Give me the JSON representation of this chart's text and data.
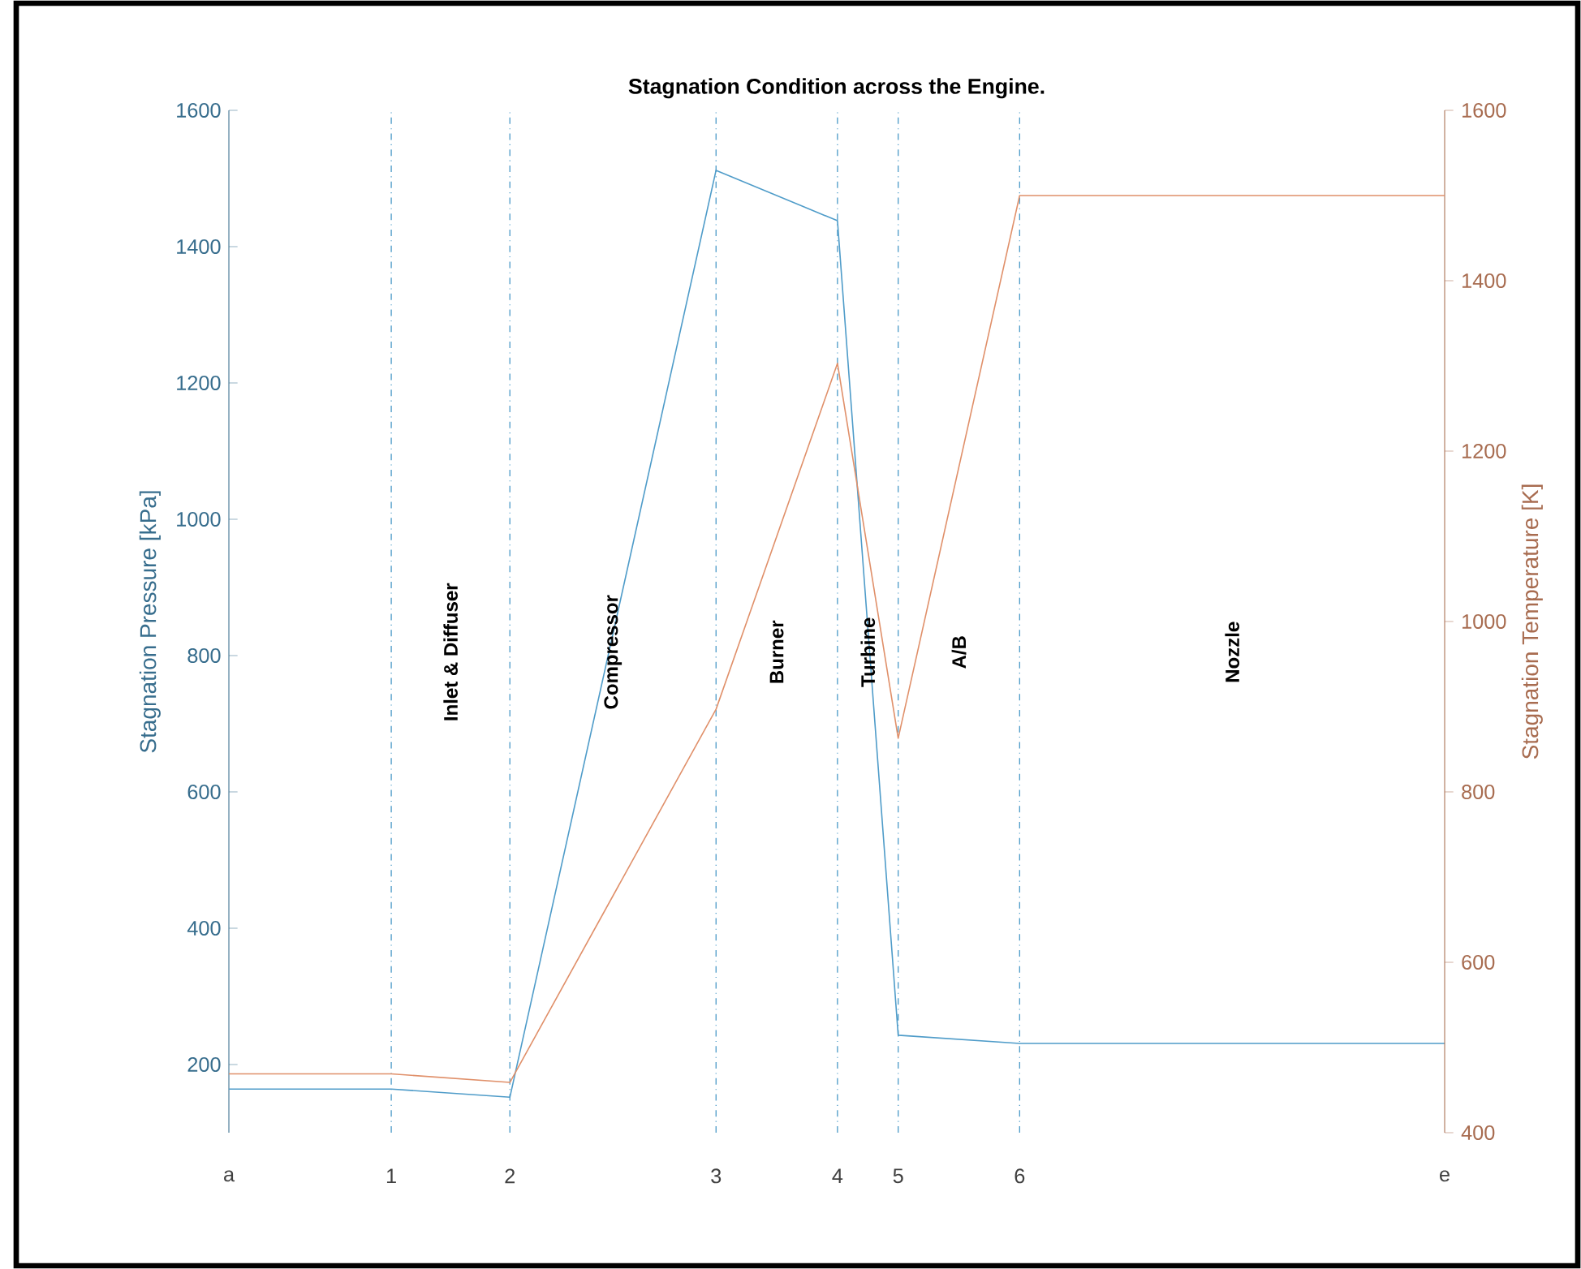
{
  "chart_data": {
    "type": "line",
    "title": "Stagnation Condition across the Engine.",
    "x": [
      0,
      1.15,
      1.99,
      3.45,
      4.31,
      4.74,
      5.6,
      8.61
    ],
    "xlim": [
      0,
      8.61
    ],
    "xticks": [
      {
        "value": 0,
        "label": "a"
      },
      {
        "value": 1.15,
        "label": "1"
      },
      {
        "value": 1.99,
        "label": "2"
      },
      {
        "value": 3.45,
        "label": "3"
      },
      {
        "value": 4.31,
        "label": "4"
      },
      {
        "value": 4.74,
        "label": "5"
      },
      {
        "value": 5.6,
        "label": "6"
      },
      {
        "value": 8.61,
        "label": "e"
      }
    ],
    "ylabel": "Stagnation Pressure [kPa]",
    "y2label": "Stagnation Temperature [K]",
    "ylim": [
      100,
      1600
    ],
    "yticks": [
      200,
      400,
      600,
      800,
      1000,
      1200,
      1400,
      1600
    ],
    "y2lim": [
      400,
      1600
    ],
    "y2ticks": [
      400,
      600,
      800,
      1000,
      1200,
      1400,
      1600
    ],
    "series": [
      {
        "color": "#4f9cc9",
        "values": [
          164,
          164,
          152,
          1512,
          1438,
          243,
          231,
          231
        ]
      },
      {
        "color": "#e0906a",
        "axis": "y2",
        "values": [
          469,
          469,
          459,
          897,
          1303,
          863,
          1500,
          1500
        ]
      }
    ],
    "ref_lines": [
      {
        "axis": "x",
        "value": 1.15,
        "color": "#4f9cc9",
        "line_style": "dashdot"
      },
      {
        "axis": "x",
        "value": 1.99,
        "color": "#4f9cc9",
        "line_style": "dashdot"
      },
      {
        "axis": "x",
        "value": 3.45,
        "color": "#4f9cc9",
        "line_style": "dashdot"
      },
      {
        "axis": "x",
        "value": 4.31,
        "color": "#4f9cc9",
        "line_style": "dashdot"
      },
      {
        "axis": "x",
        "value": 4.74,
        "color": "#4f9cc9",
        "line_style": "dashdot"
      },
      {
        "axis": "x",
        "value": 5.6,
        "color": "#4f9cc9",
        "line_style": "dashdot"
      }
    ],
    "annotations": [
      "Inlet & Diffuser",
      "Compressor",
      "Burner",
      "Turbine",
      "A/B",
      "Nozzle"
    ],
    "grid": false,
    "marker": "none",
    "line_style": "solid"
  }
}
